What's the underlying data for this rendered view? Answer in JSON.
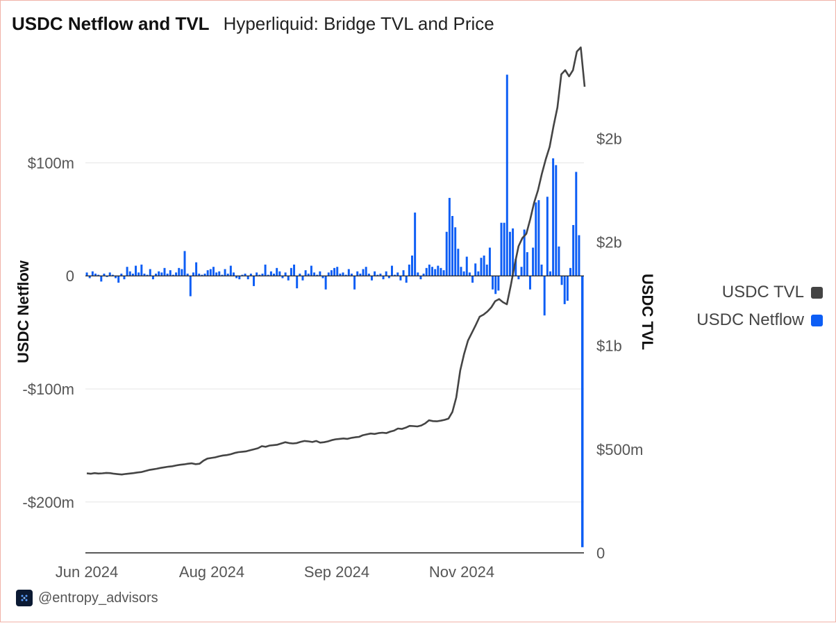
{
  "header": {
    "title": "USDC Netflow and TVL",
    "subtitle": "Hyperliquid: Bridge TVL and Price"
  },
  "footer": {
    "handle": "@entropy_advisors"
  },
  "colors": {
    "netflow": "#0d5ef5",
    "tvl": "#444444",
    "grid": "#e6e6e6",
    "axis": "#222222"
  },
  "chart_data": {
    "type": "bar+line",
    "x_tick_labels": [
      "Jun 2024",
      "Aug 2024",
      "Sep 2024",
      "Nov 2024"
    ],
    "y_left": {
      "label": "USDC Netflow",
      "tick_labels": [
        "$100m",
        "0",
        "-$100m",
        "-$200m"
      ],
      "tick_values": [
        100,
        0,
        -100,
        -200
      ],
      "range": [
        -245,
        182
      ]
    },
    "y_right": {
      "label": "USDC TVL",
      "tick_labels": [
        "$2b",
        "$2b",
        "$1b",
        "$500m",
        "0"
      ],
      "tick_values": [
        2000,
        1500,
        1000,
        500,
        0
      ],
      "range": [
        0,
        2330
      ]
    },
    "legend": [
      {
        "name": "USDC TVL",
        "color": "#444444"
      },
      {
        "name": "USDC Netflow",
        "color": "#0d5ef5"
      }
    ],
    "series": [
      {
        "name": "USDC Netflow",
        "type": "bar",
        "axis": "left",
        "values": [
          3,
          -2,
          4,
          2,
          1,
          -5,
          2,
          -1,
          3,
          1,
          -2,
          -6,
          2,
          -3,
          8,
          4,
          2,
          9,
          3,
          10,
          2,
          1,
          6,
          -3,
          2,
          4,
          3,
          7,
          2,
          5,
          1,
          3,
          7,
          6,
          22,
          2,
          -18,
          3,
          12,
          2,
          1,
          2,
          5,
          6,
          8,
          3,
          4,
          1,
          6,
          2,
          9,
          3,
          -2,
          -3,
          1,
          2,
          -3,
          2,
          -9,
          3,
          1,
          2,
          10,
          1,
          4,
          2,
          7,
          4,
          -2,
          3,
          -4,
          7,
          10,
          -11,
          2,
          -4,
          5,
          2,
          9,
          3,
          1,
          4,
          -2,
          -12,
          3,
          5,
          7,
          8,
          2,
          3,
          1,
          6,
          2,
          -12,
          4,
          2,
          6,
          8,
          2,
          -4,
          4,
          1,
          2,
          -3,
          4,
          -2,
          9,
          1,
          3,
          -4,
          5,
          -6,
          10,
          18,
          56,
          3,
          -3,
          2,
          7,
          10,
          8,
          6,
          9,
          7,
          5,
          39,
          69,
          53,
          43,
          24,
          8,
          4,
          17,
          3,
          -6,
          11,
          4,
          16,
          18,
          10,
          25,
          -12,
          -16,
          -13,
          47,
          47,
          178,
          39,
          42,
          15,
          -3,
          8,
          41,
          21,
          -12,
          25,
          65,
          67,
          10,
          -35,
          70,
          4,
          104,
          98,
          26,
          -8,
          -25,
          -22,
          7,
          45,
          92,
          36
        ],
        "tail": {
          "value": -240
        }
      },
      {
        "name": "USDC TVL",
        "type": "line",
        "axis": "right",
        "values": [
          384,
          382,
          385,
          383,
          384,
          386,
          385,
          382,
          380,
          378,
          381,
          383,
          385,
          388,
          390,
          395,
          400,
          403,
          406,
          410,
          413,
          416,
          418,
          422,
          425,
          427,
          430,
          432,
          428,
          430,
          445,
          455,
          458,
          461,
          466,
          470,
          472,
          476,
          482,
          486,
          488,
          490,
          495,
          500,
          505,
          515,
          512,
          518,
          520,
          522,
          528,
          534,
          530,
          528,
          530,
          536,
          540,
          538,
          535,
          540,
          532,
          534,
          538,
          544,
          548,
          550,
          552,
          550,
          555,
          558,
          560,
          568,
          572,
          576,
          574,
          578,
          580,
          578,
          585,
          590,
          600,
          598,
          604,
          613,
          612,
          610,
          615,
          625,
          640,
          636,
          635,
          638,
          642,
          648,
          680,
          750,
          880,
          960,
          1025,
          1062,
          1100,
          1140,
          1150,
          1165,
          1185,
          1215,
          1225,
          1210,
          1200,
          1290,
          1390,
          1480,
          1520,
          1540,
          1610,
          1690,
          1750,
          1830,
          1900,
          1960,
          2060,
          2150,
          2310,
          2330,
          2300,
          2330,
          2420,
          2440,
          2250
        ]
      }
    ],
    "grid": true
  }
}
